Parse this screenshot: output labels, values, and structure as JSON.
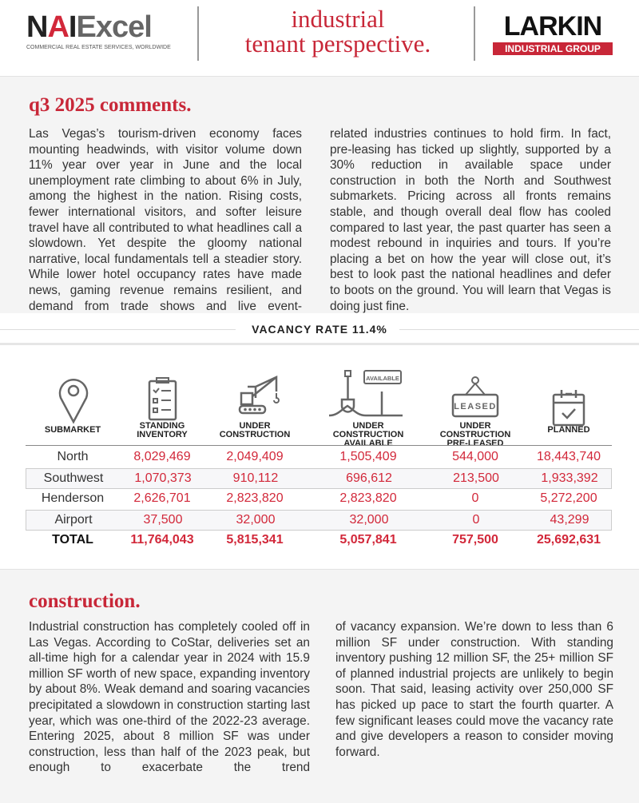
{
  "header": {
    "nai_logo": "NAI Excel",
    "nai_tagline": "COMMERCIAL REAL ESTATE SERVICES, WORLDWIDE",
    "title_line1": "industrial",
    "title_line2": "tenant perspective.",
    "larkin_logo": "LARKIN",
    "larkin_sub": "INDUSTRIAL GROUP"
  },
  "comments": {
    "title": "q3 2025 comments.",
    "col1": "Las Vegas’s tourism-driven economy faces mounting headwinds, with visitor volume down 11% year over year in June and the local unemployment rate climbing to about 6% in July, among the highest in the nation.  Rising costs, fewer international visitors, and softer leisure travel have all contributed to what headlines call a slowdown.  Yet despite the gloomy national narrative, local fundamentals tell a steadier story.  While lower hotel occupancy rates have made news, gaming revenue remains resilient, and demand from trade shows and live event-",
    "col2": "related industries continues to hold firm.  In fact, pre-leasing has ticked up slightly, supported by a 30% reduction in available space under construction in both the North and Southwest submarkets.  Pricing across all fronts remains stable, and though overall deal flow has cooled compared to last year, the past quarter has seen a modest rebound in inquiries and tours.  If you’re placing a bet on how the year will close out, it’s best to look past the national headlines and defer to boots on the ground. You will learn that Vegas is doing just fine."
  },
  "vacancy": {
    "label": "VACANCY RATE 11.4%"
  },
  "table": {
    "icons": [
      "map-pin",
      "clipboard-checklist",
      "crane-excavator",
      "shovel-available-sign",
      "leased-sign",
      "calendar-check"
    ],
    "available_sign": "AVAILABLE",
    "leased_sign": "LEASED",
    "headers": [
      [
        "SUBMARKET"
      ],
      [
        "STANDING",
        "INVENTORY"
      ],
      [
        "UNDER",
        "CONSTRUCTION"
      ],
      [
        "UNDER",
        "CONSTRUCTION",
        "AVAILABLE"
      ],
      [
        "UNDER",
        "CONSTRUCTION",
        "PRE-LEASED"
      ],
      [
        "PLANNED"
      ]
    ],
    "rows": [
      [
        "North",
        "8,029,469",
        "2,049,409",
        "1,505,409",
        "544,000",
        "18,443,740"
      ],
      [
        "Southwest",
        "1,070,373",
        "910,112",
        "696,612",
        "213,500",
        "1,933,392"
      ],
      [
        "Henderson",
        "2,626,701",
        "2,823,820",
        "2,823,820",
        "0",
        "5,272,200"
      ],
      [
        "Airport",
        "37,500",
        "32,000",
        "32,000",
        "0",
        "43,299"
      ]
    ],
    "total": [
      "TOTAL",
      "11,764,043",
      "5,815,341",
      "5,057,841",
      "757,500",
      "25,692,631"
    ],
    "accent": "#d2283a"
  },
  "construction": {
    "title": "construction.",
    "col1": "Industrial construction has completely cooled off in Las Vegas.  According to CoStar, deliveries set an all-time high for a calendar year in 2024 with 15.9 million SF worth of new space, expanding inventory by about 8%.  Weak demand and soaring vacancies precipitated a slowdown in construction starting last year, which was one-third of the 2022-23 average.  Entering 2025, about 8 million SF was under construction, less than half of the 2023 peak, but enough to exacerbate the trend",
    "col2": "of vacancy expansion.  We’re down to less than 6 million SF under construction.  With standing inventory pushing 12 million SF, the 25+ million SF of planned industrial projects are unlikely to begin soon.  That said, leasing activity over 250,000 SF has picked up pace to start the fourth quarter.  A few significant leases could move the vacancy rate and give developers a reason to consider moving forward."
  }
}
